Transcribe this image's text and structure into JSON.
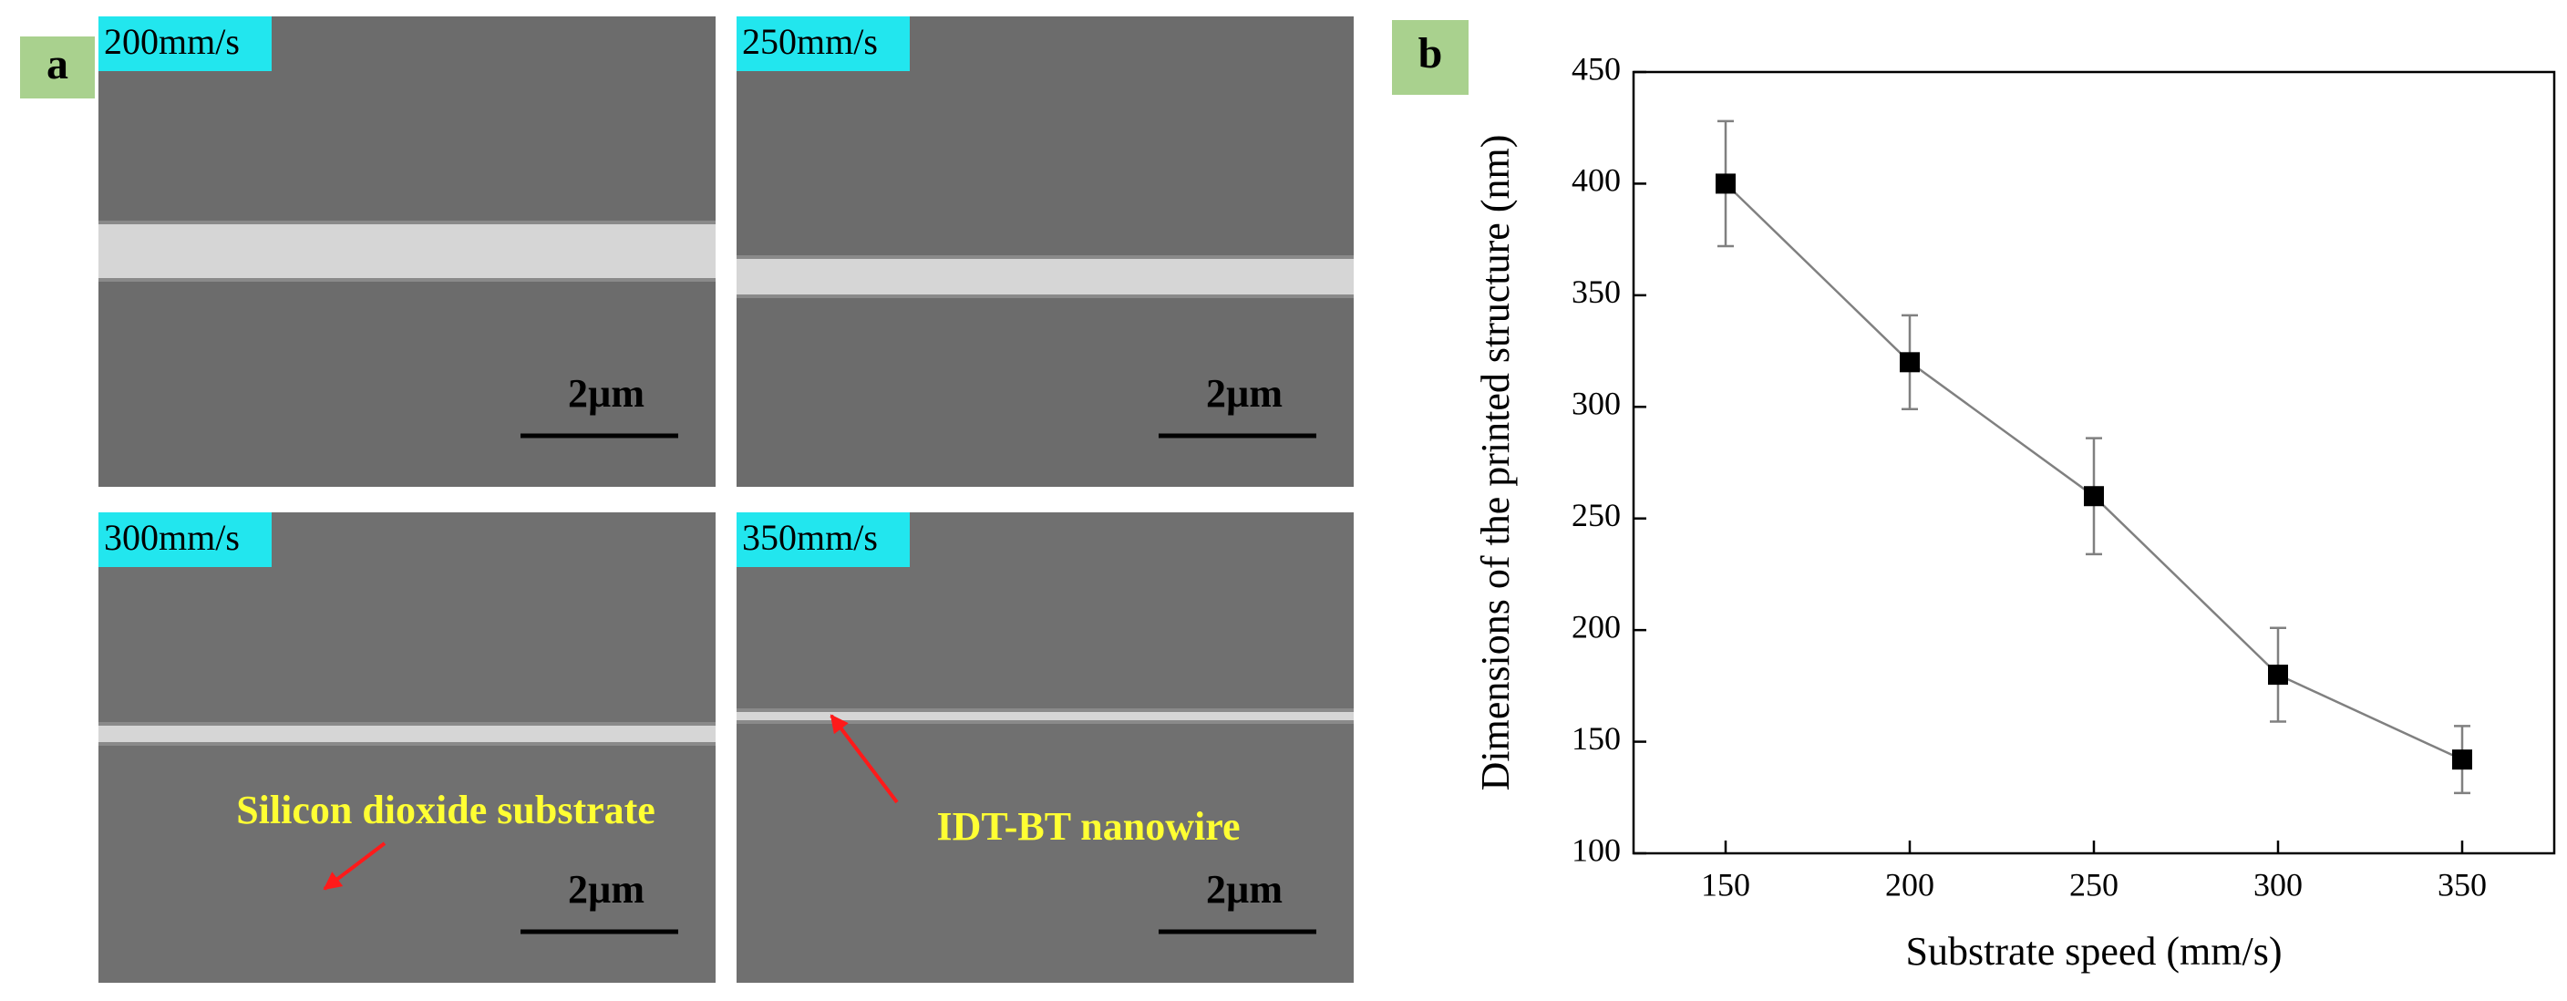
{
  "panel_labels": [
    "a",
    "b"
  ],
  "sem_images": [
    {
      "speed_label": "200mm/s",
      "scale_bar": "2µm"
    },
    {
      "speed_label": "250mm/s",
      "scale_bar": "2µm"
    },
    {
      "speed_label": "300mm/s",
      "scale_bar": "2µm"
    },
    {
      "speed_label": "350mm/s",
      "scale_bar": "2µm"
    }
  ],
  "annotations": [
    "Silicon dioxide substrate",
    "IDT-BT nanowire"
  ],
  "chart_data": {
    "type": "line",
    "x_label": "Substrate speed (mm/s)",
    "y_label": "Dimensions of the printed structure (nm)",
    "x": [
      150,
      200,
      250,
      300,
      350
    ],
    "values": [
      400,
      320,
      260,
      180,
      142
    ],
    "errors": [
      28,
      21,
      26,
      21,
      15
    ],
    "color": "#808080",
    "marker_color": "#000000",
    "xlim": [
      125,
      375
    ],
    "ylim": [
      100,
      450
    ],
    "xticks": [
      150,
      200,
      250,
      300,
      350
    ],
    "yticks": [
      100,
      150,
      200,
      250,
      300,
      350,
      400,
      450
    ],
    "grid": false
  }
}
